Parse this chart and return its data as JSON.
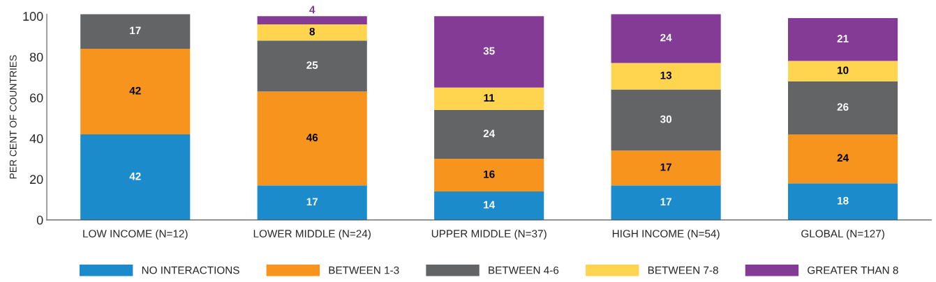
{
  "chart_data": {
    "type": "bar",
    "stacked": true,
    "ylabel": "PER CENT OF COUNTRIES",
    "categories": [
      "LOW INCOME (N=12)",
      "LOWER MIDDLE (N=24)",
      "UPPER MIDDLE (N=37)",
      "HIGH INCOME (N=54)",
      "GLOBAL (N=127)"
    ],
    "series": [
      {
        "name": "NO INTERACTIONS",
        "color": "#1b8bcc",
        "values": [
          42,
          17,
          14,
          17,
          18
        ]
      },
      {
        "name": "BETWEEN 1-3",
        "color": "#f7941d",
        "values": [
          42,
          46,
          16,
          17,
          24
        ]
      },
      {
        "name": "BETWEEN 4-6",
        "color": "#636466",
        "values": [
          17,
          25,
          24,
          30,
          26
        ]
      },
      {
        "name": "BETWEEN 7-8",
        "color": "#ffd54f",
        "values": [
          null,
          8,
          11,
          13,
          10
        ]
      },
      {
        "name": "GREATER THAN 8",
        "color": "#843b96",
        "values": [
          null,
          4,
          35,
          24,
          21
        ]
      }
    ],
    "ylim": [
      0,
      101
    ],
    "yticks": [
      0,
      20,
      40,
      60,
      80,
      100
    ],
    "data_labels": true,
    "legend": "bottom",
    "grid": false
  }
}
